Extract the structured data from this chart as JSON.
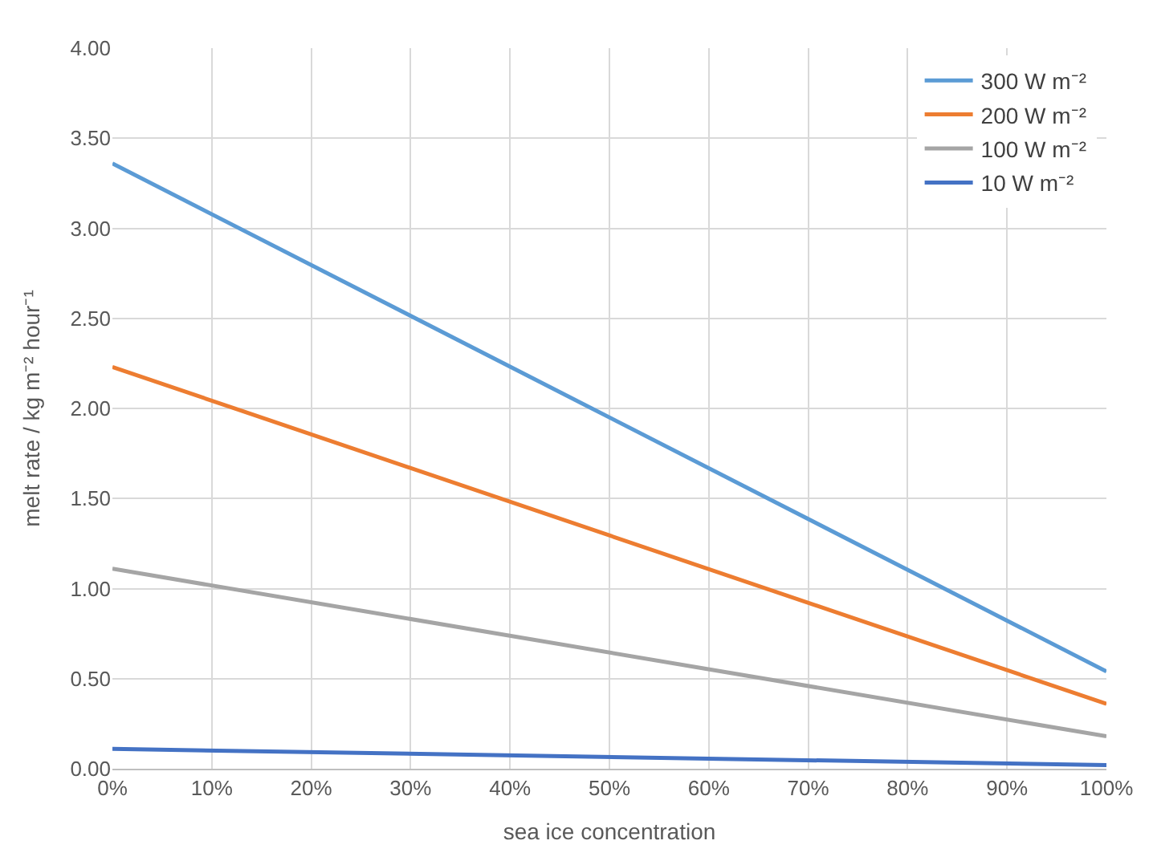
{
  "chart_data": {
    "type": "line",
    "xlabel": "sea ice concentration",
    "ylabel": "melt rate / kg m⁻² hour⁻¹",
    "x": [
      0,
      100
    ],
    "series": [
      {
        "name": "300 W m⁻²",
        "color": "#5b9bd5",
        "values": [
          3.36,
          0.54
        ]
      },
      {
        "name": "200 W m⁻²",
        "color": "#ed7d31",
        "values": [
          2.23,
          0.36
        ]
      },
      {
        "name": "100 W m⁻²",
        "color": "#a5a5a5",
        "values": [
          1.11,
          0.18
        ]
      },
      {
        "name": "10 W m⁻²",
        "color": "#4472c4",
        "values": [
          0.11,
          0.02
        ]
      }
    ],
    "xlim": [
      0,
      100
    ],
    "xticks": [
      {
        "value": 0,
        "label": "0%"
      },
      {
        "value": 10,
        "label": "10%"
      },
      {
        "value": 20,
        "label": "20%"
      },
      {
        "value": 30,
        "label": "30%"
      },
      {
        "value": 40,
        "label": "40%"
      },
      {
        "value": 50,
        "label": "50%"
      },
      {
        "value": 60,
        "label": "60%"
      },
      {
        "value": 70,
        "label": "70%"
      },
      {
        "value": 80,
        "label": "80%"
      },
      {
        "value": 90,
        "label": "90%"
      },
      {
        "value": 100,
        "label": "100%"
      }
    ],
    "ylim": [
      0,
      4
    ],
    "yticks": [
      {
        "value": 0,
        "label": "0.00"
      },
      {
        "value": 0.5,
        "label": "0.50"
      },
      {
        "value": 1,
        "label": "1.00"
      },
      {
        "value": 1.5,
        "label": "1.50"
      },
      {
        "value": 2,
        "label": "2.00"
      },
      {
        "value": 2.5,
        "label": "2.50"
      },
      {
        "value": 3,
        "label": "3.00"
      },
      {
        "value": 3.5,
        "label": "3.50"
      },
      {
        "value": 4,
        "label": "4.00"
      }
    ],
    "grid": true,
    "legend": "top right",
    "marker": "none",
    "line_style": "solid"
  }
}
